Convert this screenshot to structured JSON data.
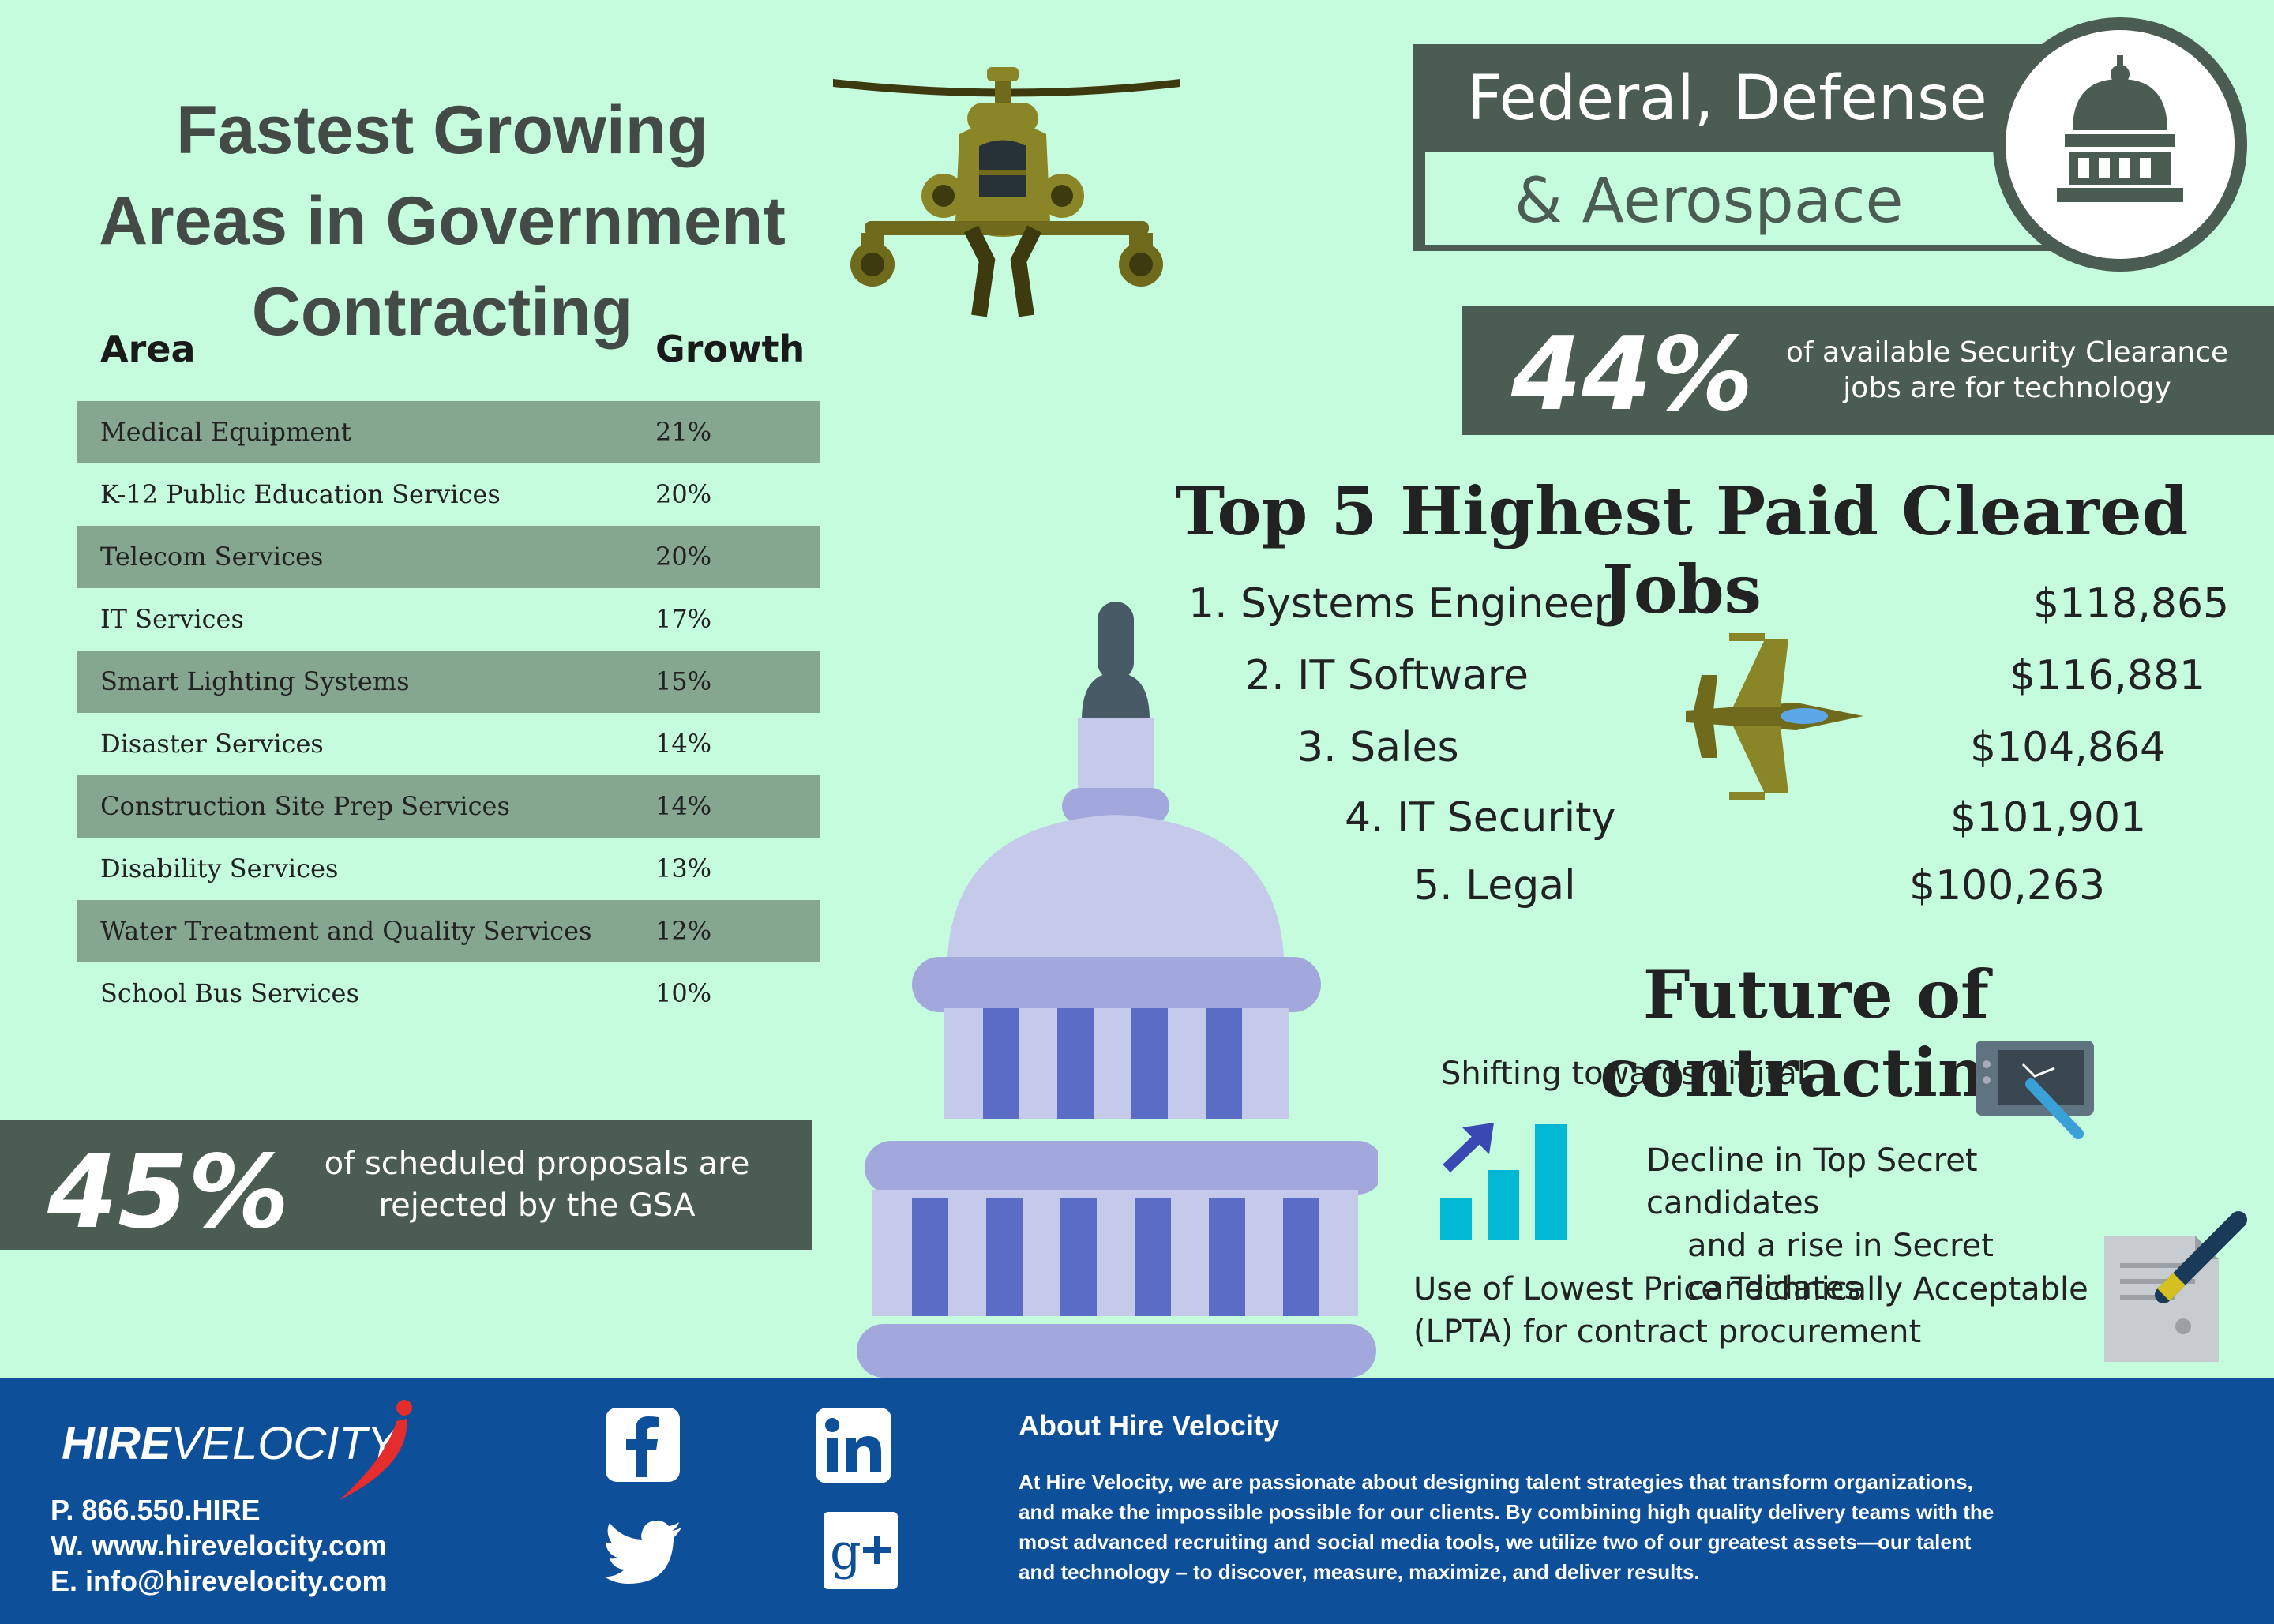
{
  "title": {
    "line1": "Fastest Growing",
    "line2": "Areas in Government",
    "line3": "Contracting"
  },
  "growth_table": {
    "headers": [
      "Area",
      "Growth"
    ],
    "rows": [
      {
        "area": "Medical Equipment",
        "growth": "21%"
      },
      {
        "area": "K-12 Public Education Services",
        "growth": "20%"
      },
      {
        "area": "Telecom Services",
        "growth": "20%"
      },
      {
        "area": "IT Services",
        "growth": "17%"
      },
      {
        "area": "Smart Lighting Systems",
        "growth": "15%"
      },
      {
        "area": "Disaster Services",
        "growth": "14%"
      },
      {
        "area": "Construction Site Prep Services",
        "growth": "14%"
      },
      {
        "area": "Disability Services",
        "growth": "13%"
      },
      {
        "area": "Water Treatment and Quality Services",
        "growth": "12%"
      },
      {
        "area": "School Bus Services",
        "growth": "10%"
      }
    ]
  },
  "stat45": {
    "value": "45%",
    "line1": "of scheduled proposals are",
    "line2": "rejected by the GSA"
  },
  "federal": {
    "line1": "Federal, Defense",
    "line2": "& Aerospace"
  },
  "stat44": {
    "value": "44%",
    "line1": "of available Security Clearance",
    "line2": "jobs are for technology"
  },
  "top5": {
    "title": "Top 5 Highest Paid Cleared Jobs",
    "jobs": [
      {
        "name": "1. Systems Engineer",
        "salary": "$118,865"
      },
      {
        "name": "2. IT Software",
        "salary": "$116,881"
      },
      {
        "name": "3. Sales",
        "salary": "$104,864"
      },
      {
        "name": "4. IT Security",
        "salary": "$101,901"
      },
      {
        "name": "5. Legal",
        "salary": "$100,263"
      }
    ]
  },
  "future": {
    "title": "Future of contracting",
    "item1": "Shifting towards digital",
    "item2_line1": "Decline in Top Secret candidates",
    "item2_line2": "and a rise in Secret candidates",
    "item3_line1": "Use of Lowest Price Technically Acceptable",
    "item3_line2": "(LPTA) for contract procurement"
  },
  "footer": {
    "logo_hire": "HIRE",
    "logo_velocity": "VELOCITY",
    "phone": "P. 866.550.HIRE",
    "web": "W. www.hirevelocity.com",
    "email": "E. info@hirevelocity.com",
    "about_title": "About Hire Velocity",
    "about_lines": [
      "At Hire Velocity, we are passionate about designing talent strategies that transform organizations,",
      "and make the impossible possible for our clients. By combining high quality delivery teams with the",
      "most advanced recruiting and social media tools, we utilize two of our greatest assets—our talent",
      "and technology – to discover, measure, maximize, and deliver results."
    ],
    "social": [
      "facebook-icon",
      "linkedin-icon",
      "twitter-icon",
      "google-plus-icon"
    ]
  },
  "colors": {
    "background": "#c5fcdd",
    "banner": "#4b5c52",
    "table_shade": "#85a68f",
    "footer": "#0e4f99",
    "dome_light": "#c5c9ea",
    "dome_mid": "#a3a8dc",
    "dome_column": "#5b6cc6",
    "olive": "#6f6a1c"
  }
}
